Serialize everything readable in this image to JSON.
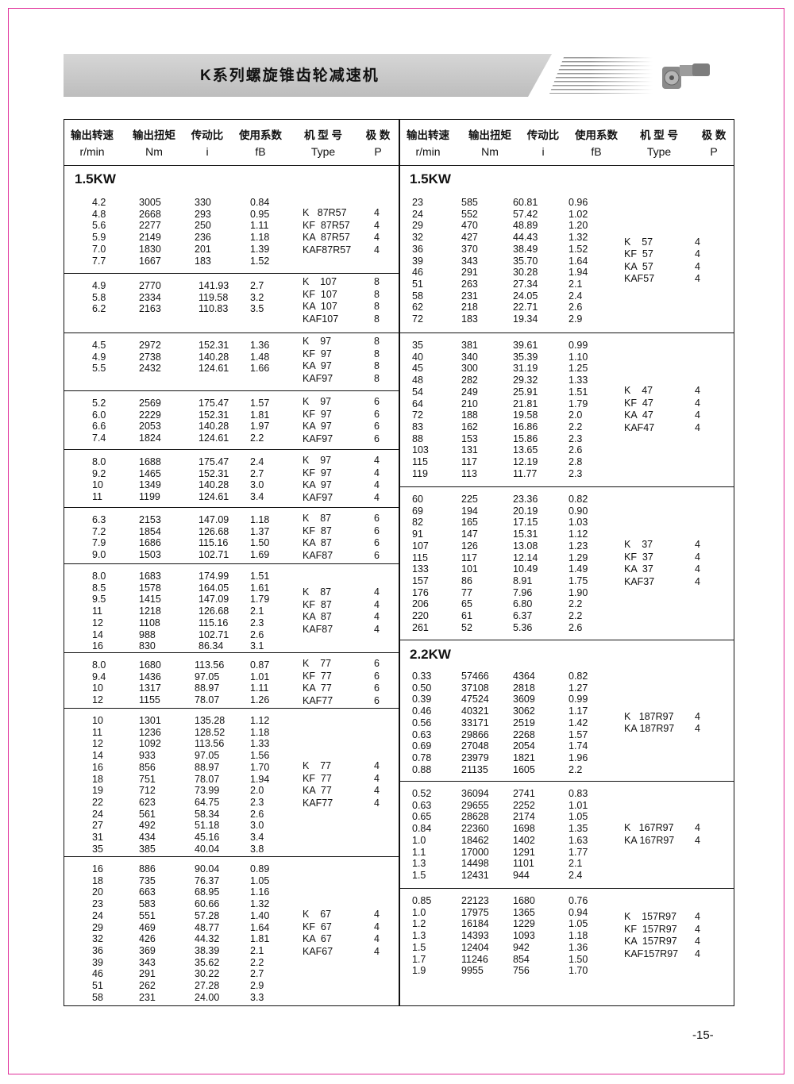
{
  "title": "K系列螺旋锥齿轮减速机",
  "page_number": "-15-",
  "colors": {
    "frame": "#e0309a",
    "banner": "#c8c8c8"
  },
  "header": {
    "cn": [
      "输出转速",
      "输出扭矩",
      "传动比",
      "使用系数",
      "机 型 号",
      "极 数"
    ],
    "en": [
      "r/min",
      "Nm",
      "i",
      "fB",
      "Type",
      "P"
    ]
  },
  "left": [
    {
      "kw": "1.5KW",
      "rows": [
        [
          "4.2",
          "3005",
          "330",
          "0.84"
        ],
        [
          "4.8",
          "2668",
          "293",
          "0.95"
        ],
        [
          "5.6",
          "2277",
          "250",
          "1.11"
        ],
        [
          "5.9",
          "2149",
          "236",
          "1.18"
        ],
        [
          "7.0",
          "1830",
          "201",
          "1.39"
        ],
        [
          "7.7",
          "1667",
          "183",
          "1.52"
        ]
      ],
      "types": [
        [
          "K   87R57",
          "4"
        ],
        [
          "KF  87R57",
          "4"
        ],
        [
          "KA  87R57",
          "4"
        ],
        [
          "KAF87R57",
          "4"
        ]
      ]
    },
    {
      "rows": [
        [
          "4.9",
          "2770",
          "141.93",
          "2.7"
        ],
        [
          "5.8",
          "2334",
          "119.58",
          "3.2"
        ],
        [
          "6.2",
          "2163",
          "110.83",
          "3.5"
        ]
      ],
      "types": [
        [
          "K    107",
          "8"
        ],
        [
          "KF  107",
          "8"
        ],
        [
          "KA  107",
          "8"
        ],
        [
          "KAF107",
          "8"
        ]
      ]
    },
    {
      "rows": [
        [
          "4.5",
          "2972",
          "152.31",
          "1.36"
        ],
        [
          "4.9",
          "2738",
          "140.28",
          "1.48"
        ],
        [
          "5.5",
          "2432",
          "124.61",
          "1.66"
        ]
      ],
      "types": [
        [
          "K    97",
          "8"
        ],
        [
          "KF  97",
          "8"
        ],
        [
          "KA  97",
          "8"
        ],
        [
          "KAF97",
          "8"
        ]
      ]
    },
    {
      "rows": [
        [
          "5.2",
          "2569",
          "175.47",
          "1.57"
        ],
        [
          "6.0",
          "2229",
          "152.31",
          "1.81"
        ],
        [
          "6.6",
          "2053",
          "140.28",
          "1.97"
        ],
        [
          "7.4",
          "1824",
          "124.61",
          "2.2"
        ]
      ],
      "types": [
        [
          "K    97",
          "6"
        ],
        [
          "KF  97",
          "6"
        ],
        [
          "KA  97",
          "6"
        ],
        [
          "KAF97",
          "6"
        ]
      ]
    },
    {
      "rows": [
        [
          "8.0",
          "1688",
          "175.47",
          "2.4"
        ],
        [
          "9.2",
          "1465",
          "152.31",
          "2.7"
        ],
        [
          "10",
          "1349",
          "140.28",
          "3.0"
        ],
        [
          "11",
          "1199",
          "124.61",
          "3.4"
        ]
      ],
      "types": [
        [
          "K    97",
          "4"
        ],
        [
          "KF  97",
          "4"
        ],
        [
          "KA  97",
          "4"
        ],
        [
          "KAF97",
          "4"
        ]
      ]
    },
    {
      "rows": [
        [
          "6.3",
          "2153",
          "147.09",
          "1.18"
        ],
        [
          "7.2",
          "1854",
          "126.68",
          "1.37"
        ],
        [
          "7.9",
          "1686",
          "115.16",
          "1.50"
        ],
        [
          "9.0",
          "1503",
          "102.71",
          "1.69"
        ]
      ],
      "types": [
        [
          "K    87",
          "6"
        ],
        [
          "KF  87",
          "6"
        ],
        [
          "KA  87",
          "6"
        ],
        [
          "KAF87",
          "6"
        ]
      ]
    },
    {
      "rows": [
        [
          "8.0",
          "1683",
          "174.99",
          "1.51"
        ],
        [
          "8.5",
          "1578",
          "164.05",
          "1.61"
        ],
        [
          "9.5",
          "1415",
          "147.09",
          "1.79"
        ],
        [
          "11",
          "1218",
          "126.68",
          "2.1"
        ],
        [
          "12",
          "1108",
          "115.16",
          "2.3"
        ],
        [
          "14",
          "988",
          "102.71",
          "2.6"
        ],
        [
          "16",
          "830",
          "86.34",
          "3.1"
        ]
      ],
      "types": [
        [
          "K    87",
          "4"
        ],
        [
          "KF  87",
          "4"
        ],
        [
          "KA  87",
          "4"
        ],
        [
          "KAF87",
          "4"
        ]
      ]
    },
    {
      "rows": [
        [
          "8.0",
          "1680",
          "113.56",
          "0.87"
        ],
        [
          "9.4",
          "1436",
          "97.05",
          "1.01"
        ],
        [
          "10",
          "1317",
          "88.97",
          "1.11"
        ],
        [
          "12",
          "1155",
          "78.07",
          "1.26"
        ]
      ],
      "types": [
        [
          "K    77",
          "6"
        ],
        [
          "KF  77",
          "6"
        ],
        [
          "KA  77",
          "6"
        ],
        [
          "KAF77",
          "6"
        ]
      ]
    },
    {
      "rows": [
        [
          "10",
          "1301",
          "135.28",
          "1.12"
        ],
        [
          "11",
          "1236",
          "128.52",
          "1.18"
        ],
        [
          "12",
          "1092",
          "113.56",
          "1.33"
        ],
        [
          "14",
          "933",
          "97.05",
          "1.56"
        ],
        [
          "16",
          "856",
          "88.97",
          "1.70"
        ],
        [
          "18",
          "751",
          "78.07",
          "1.94"
        ],
        [
          "19",
          "712",
          "73.99",
          "2.0"
        ],
        [
          "22",
          "623",
          "64.75",
          "2.3"
        ],
        [
          "24",
          "561",
          "58.34",
          "2.6"
        ],
        [
          "27",
          "492",
          "51.18",
          "3.0"
        ],
        [
          "31",
          "434",
          "45.16",
          "3.4"
        ],
        [
          "35",
          "385",
          "40.04",
          "3.8"
        ]
      ],
      "types": [
        [
          "K    77",
          "4"
        ],
        [
          "KF  77",
          "4"
        ],
        [
          "KA  77",
          "4"
        ],
        [
          "KAF77",
          "4"
        ]
      ]
    },
    {
      "rows": [
        [
          "16",
          "886",
          "90.04",
          "0.89"
        ],
        [
          "18",
          "735",
          "76.37",
          "1.05"
        ],
        [
          "20",
          "663",
          "68.95",
          "1.16"
        ],
        [
          "23",
          "583",
          "60.66",
          "1.32"
        ],
        [
          "24",
          "551",
          "57.28",
          "1.40"
        ],
        [
          "29",
          "469",
          "48.77",
          "1.64"
        ],
        [
          "32",
          "426",
          "44.32",
          "1.81"
        ],
        [
          "36",
          "369",
          "38.39",
          "2.1"
        ],
        [
          "39",
          "343",
          "35.62",
          "2.2"
        ],
        [
          "46",
          "291",
          "30.22",
          "2.7"
        ],
        [
          "51",
          "262",
          "27.28",
          "2.9"
        ],
        [
          "58",
          "231",
          "24.00",
          "3.3"
        ]
      ],
      "types": [
        [
          "K    67",
          "4"
        ],
        [
          "KF  67",
          "4"
        ],
        [
          "KA  67",
          "4"
        ],
        [
          "KAF67",
          "4"
        ]
      ]
    }
  ],
  "right": [
    {
      "kw": "1.5KW",
      "rows": [
        [
          "23",
          "585",
          "60.81",
          "0.96"
        ],
        [
          "24",
          "552",
          "57.42",
          "1.02"
        ],
        [
          "29",
          "470",
          "48.89",
          "1.20"
        ],
        [
          "32",
          "427",
          "44.43",
          "1.32"
        ],
        [
          "36",
          "370",
          "38.49",
          "1.52"
        ],
        [
          "39",
          "343",
          "35.70",
          "1.64"
        ],
        [
          "46",
          "291",
          "30.28",
          "1.94"
        ],
        [
          "51",
          "263",
          "27.34",
          "2.1"
        ],
        [
          "58",
          "231",
          "24.05",
          "2.4"
        ],
        [
          "62",
          "218",
          "22.71",
          "2.6"
        ],
        [
          "72",
          "183",
          "19.34",
          "2.9"
        ]
      ],
      "types": [
        [
          "K    57",
          "4"
        ],
        [
          "KF  57",
          "4"
        ],
        [
          "KA  57",
          "4"
        ],
        [
          "KAF57",
          "4"
        ]
      ]
    },
    {
      "rows": [
        [
          "35",
          "381",
          "39.61",
          "0.99"
        ],
        [
          "40",
          "340",
          "35.39",
          "1.10"
        ],
        [
          "45",
          "300",
          "31.19",
          "1.25"
        ],
        [
          "48",
          "282",
          "29.32",
          "1.33"
        ],
        [
          "54",
          "249",
          "25.91",
          "1.51"
        ],
        [
          "64",
          "210",
          "21.81",
          "1.79"
        ],
        [
          "72",
          "188",
          "19.58",
          "2.0"
        ],
        [
          "83",
          "162",
          "16.86",
          "2.2"
        ],
        [
          "88",
          "153",
          "15.86",
          "2.3"
        ],
        [
          "103",
          "131",
          "13.65",
          "2.6"
        ],
        [
          "115",
          "117",
          "12.19",
          "2.8"
        ],
        [
          "119",
          "113",
          "11.77",
          "2.3"
        ]
      ],
      "types": [
        [
          "K    47",
          "4"
        ],
        [
          "KF  47",
          "4"
        ],
        [
          "KA  47",
          "4"
        ],
        [
          "KAF47",
          "4"
        ]
      ]
    },
    {
      "rows": [
        [
          "60",
          "225",
          "23.36",
          "0.82"
        ],
        [
          "69",
          "194",
          "20.19",
          "0.90"
        ],
        [
          "82",
          "165",
          "17.15",
          "1.03"
        ],
        [
          "91",
          "147",
          "15.31",
          "1.12"
        ],
        [
          "107",
          "126",
          "13.08",
          "1.23"
        ],
        [
          "115",
          "117",
          "12.14",
          "1.29"
        ],
        [
          "133",
          "101",
          "10.49",
          "1.49"
        ],
        [
          "157",
          "86",
          "8.91",
          "1.75"
        ],
        [
          "176",
          "77",
          "7.96",
          "1.90"
        ],
        [
          "206",
          "65",
          "6.80",
          "2.2"
        ],
        [
          "220",
          "61",
          "6.37",
          "2.2"
        ],
        [
          "261",
          "52",
          "5.36",
          "2.6"
        ]
      ],
      "types": [
        [
          "K    37",
          "4"
        ],
        [
          "KF  37",
          "4"
        ],
        [
          "KA  37",
          "4"
        ],
        [
          "KAF37",
          "4"
        ]
      ]
    },
    {
      "kw": "2.2KW",
      "rows": [
        [
          "0.33",
          "57466",
          "4364",
          "0.82"
        ],
        [
          "0.50",
          "37108",
          "2818",
          "1.27"
        ],
        [
          "0.39",
          "47524",
          "3609",
          "0.99"
        ],
        [
          "0.46",
          "40321",
          "3062",
          "1.17"
        ],
        [
          "0.56",
          "33171",
          "2519",
          "1.42"
        ],
        [
          "0.63",
          "29866",
          "2268",
          "1.57"
        ],
        [
          "0.69",
          "27048",
          "2054",
          "1.74"
        ],
        [
          "0.78",
          "23979",
          "1821",
          "1.96"
        ],
        [
          "0.88",
          "21135",
          "1605",
          "2.2"
        ]
      ],
      "types": [
        [
          "K   187R97",
          "4"
        ],
        [
          "KA 187R97",
          "4"
        ]
      ]
    },
    {
      "rows": [
        [
          "0.52",
          "36094",
          "2741",
          "0.83"
        ],
        [
          "0.63",
          "29655",
          "2252",
          "1.01"
        ],
        [
          "0.65",
          "28628",
          "2174",
          "1.05"
        ],
        [
          "0.84",
          "22360",
          "1698",
          "1.35"
        ],
        [
          "1.0",
          "18462",
          "1402",
          "1.63"
        ],
        [
          "1.1",
          "17000",
          "1291",
          "1.77"
        ],
        [
          "1.3",
          "14498",
          "1101",
          "2.1"
        ],
        [
          "1.5",
          "12431",
          "944",
          "2.4"
        ]
      ],
      "types": [
        [
          "K   167R97",
          "4"
        ],
        [
          "KA 167R97",
          "4"
        ]
      ]
    },
    {
      "rows": [
        [
          "0.85",
          "22123",
          "1680",
          "0.76"
        ],
        [
          "1.0",
          "17975",
          "1365",
          "0.94"
        ],
        [
          "1.2",
          "16184",
          "1229",
          "1.05"
        ],
        [
          "1.3",
          "14393",
          "1093",
          "1.18"
        ],
        [
          "1.5",
          "12404",
          "942",
          "1.36"
        ],
        [
          "1.7",
          "11246",
          "854",
          "1.50"
        ],
        [
          "1.9",
          "9955",
          "756",
          "1.70"
        ]
      ],
      "types": [
        [
          "K    157R97",
          "4"
        ],
        [
          "KF  157R97",
          "4"
        ],
        [
          "KA  157R97",
          "4"
        ],
        [
          "KAF157R97",
          "4"
        ]
      ]
    }
  ]
}
